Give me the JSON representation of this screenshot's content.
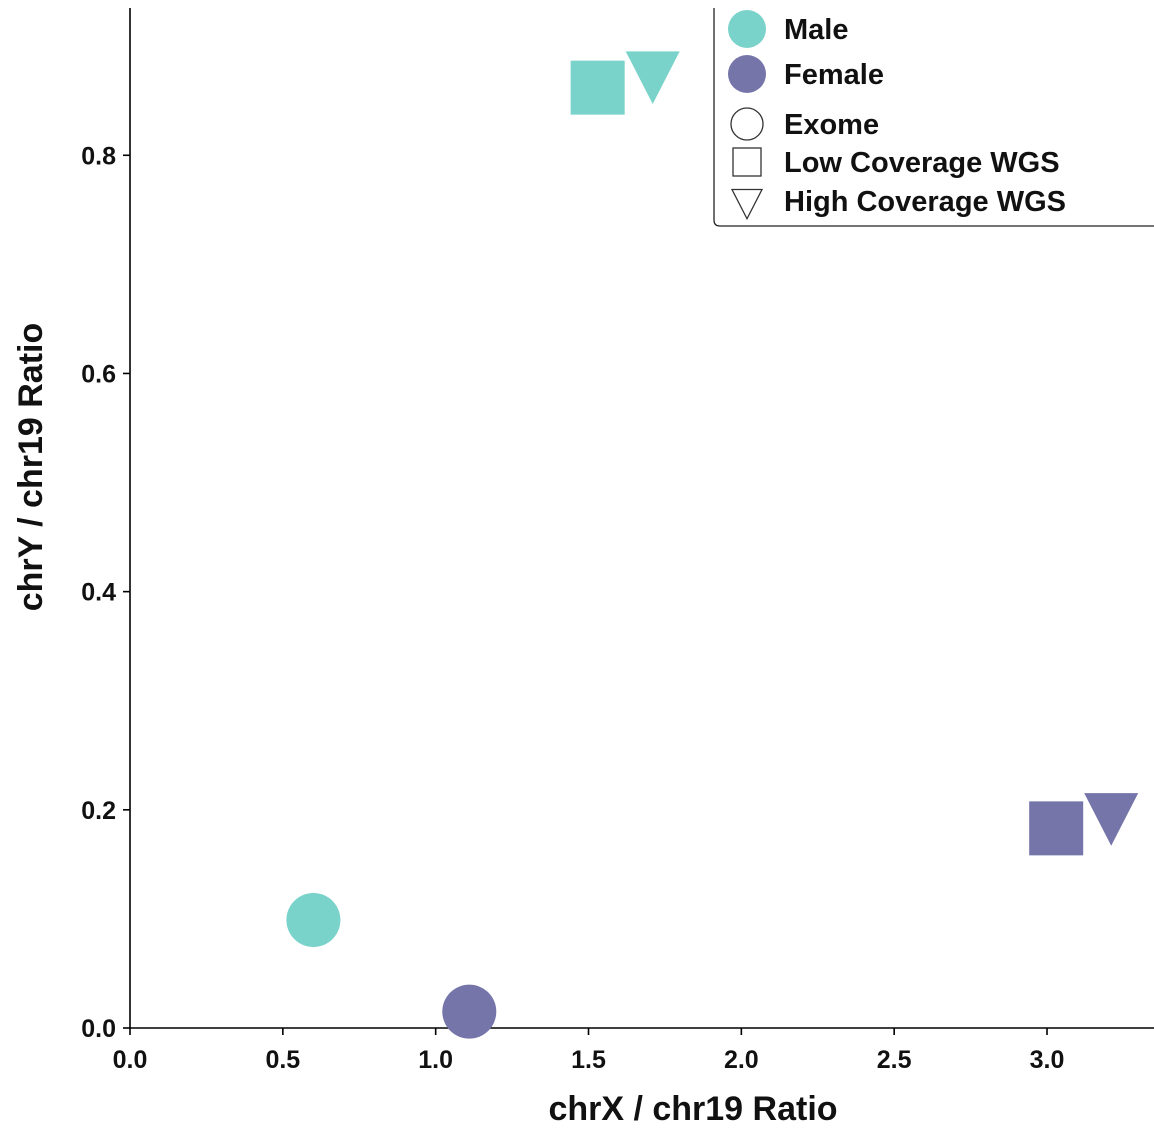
{
  "chart_data": {
    "type": "scatter",
    "title": "",
    "xlabel": "chrX / chr19 Ratio",
    "ylabel": "chrY / chr19 Ratio",
    "xlim": [
      0.0,
      3.35
    ],
    "ylim": [
      0.0,
      0.935
    ],
    "xticks": [
      0.0,
      0.5,
      1.0,
      1.5,
      2.0,
      2.5,
      3.0
    ],
    "xtick_labels": [
      "0.0",
      "0.5",
      "1.0",
      "1.5",
      "2.0",
      "2.5",
      "3.0"
    ],
    "yticks": [
      0.0,
      0.2,
      0.4,
      0.6,
      0.8
    ],
    "ytick_labels": [
      "0.0",
      "0.2",
      "0.4",
      "0.6",
      "0.8"
    ],
    "grid": false,
    "legend_position": "top-right",
    "colors": {
      "Male": "#7ad3ca",
      "Female": "#7575aa",
      "legend_outline": "#333333"
    },
    "legend": {
      "colors": [
        {
          "label": "Male",
          "color": "#7ad3ca"
        },
        {
          "label": "Female",
          "color": "#7575aa"
        }
      ],
      "shapes": [
        {
          "label": "Exome",
          "marker": "circle"
        },
        {
          "label": "Low Coverage WGS",
          "marker": "square"
        },
        {
          "label": "High Coverage WGS",
          "marker": "triangle-down"
        }
      ]
    },
    "points": [
      {
        "sex": "Male",
        "assay": "Exome",
        "marker": "circle",
        "x": 0.6,
        "y": 0.099
      },
      {
        "sex": "Female",
        "assay": "Exome",
        "marker": "circle",
        "x": 1.11,
        "y": 0.015
      },
      {
        "sex": "Male",
        "assay": "Low Coverage WGS",
        "marker": "square",
        "x": 1.53,
        "y": 0.862
      },
      {
        "sex": "Male",
        "assay": "High Coverage WGS",
        "marker": "triangle-down",
        "x": 1.71,
        "y": 0.873
      },
      {
        "sex": "Female",
        "assay": "Low Coverage WGS",
        "marker": "square",
        "x": 3.03,
        "y": 0.183
      },
      {
        "sex": "Female",
        "assay": "High Coverage WGS",
        "marker": "triangle-down",
        "x": 3.21,
        "y": 0.193
      }
    ]
  }
}
